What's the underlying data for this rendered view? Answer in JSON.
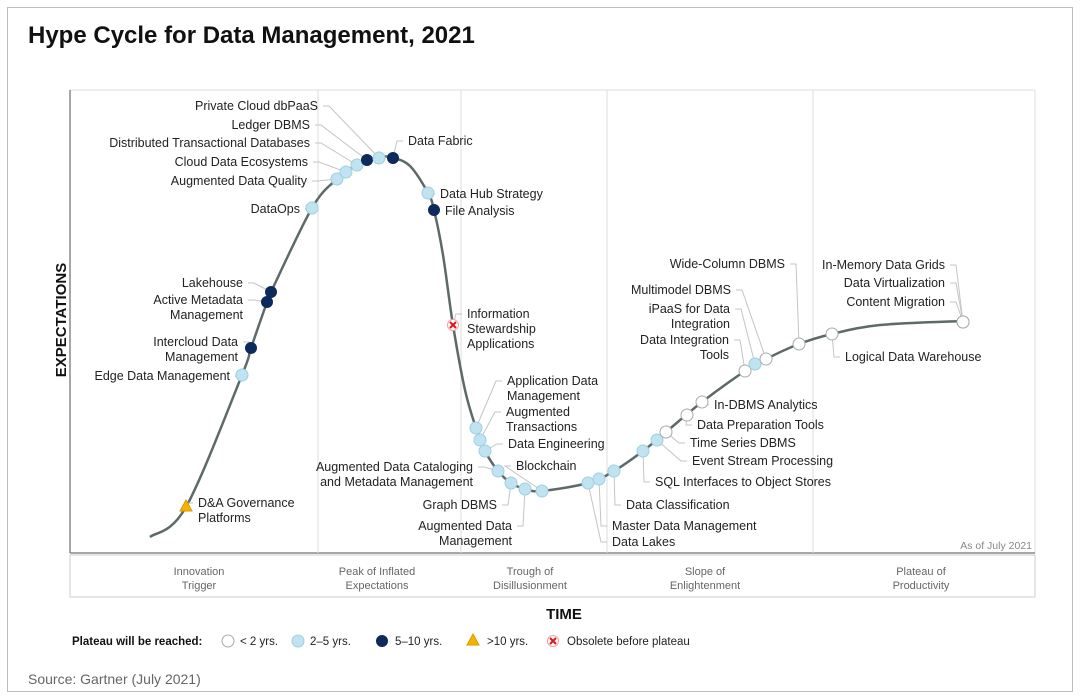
{
  "chart_data": {
    "type": "hype-cycle",
    "title": "Hype Cycle for Data Management, 2021",
    "xlabel": "TIME",
    "ylabel": "EXPECTATIONS",
    "as_of": "As of July 2021",
    "phases": [
      [
        "Innovation",
        "Trigger"
      ],
      [
        "Peak of Inflated",
        "Expectations"
      ],
      [
        "Trough of",
        "Disillusionment"
      ],
      [
        "Slope of",
        "Enlightenment"
      ],
      [
        "Plateau of",
        "Productivity"
      ]
    ],
    "legend": {
      "title": "Plateau will be reached:",
      "items": [
        {
          "key": "lt2",
          "label": "< 2 yrs."
        },
        {
          "key": "2to5",
          "label": "2–5 yrs."
        },
        {
          "key": "5to10",
          "label": "5–10 yrs."
        },
        {
          "key": "gt10",
          "label": ">10 yrs."
        },
        {
          "key": "obsolete",
          "label": "Obsolete before plateau"
        }
      ]
    },
    "colors": {
      "lt2": "#ffffff",
      "2to5": "#bfe3f1",
      "5to10": "#0d2a5c",
      "gt10": "#f5b301",
      "obsolete": "#e3131b",
      "curve": "#5e6a69"
    },
    "points": [
      {
        "name": [
          "D&A Governance",
          "Platforms"
        ],
        "plateau": "gt10",
        "phase": "Innovation Trigger"
      },
      {
        "name": [
          "Edge Data Management"
        ],
        "plateau": "2to5",
        "phase": "Innovation Trigger"
      },
      {
        "name": [
          "Intercloud Data",
          "Management"
        ],
        "plateau": "5to10",
        "phase": "Innovation Trigger"
      },
      {
        "name": [
          "Active Metadata",
          "Management"
        ],
        "plateau": "5to10",
        "phase": "Innovation Trigger"
      },
      {
        "name": [
          "Lakehouse"
        ],
        "plateau": "5to10",
        "phase": "Innovation Trigger"
      },
      {
        "name": [
          "DataOps"
        ],
        "plateau": "2to5",
        "phase": "Innovation Trigger"
      },
      {
        "name": [
          "Augmented Data Quality"
        ],
        "plateau": "2to5",
        "phase": "Peak of Inflated Expectations"
      },
      {
        "name": [
          "Cloud Data Ecosystems"
        ],
        "plateau": "2to5",
        "phase": "Peak of Inflated Expectations"
      },
      {
        "name": [
          "Distributed Transactional Databases"
        ],
        "plateau": "2to5",
        "phase": "Peak of Inflated Expectations"
      },
      {
        "name": [
          "Ledger DBMS"
        ],
        "plateau": "5to10",
        "phase": "Peak of Inflated Expectations"
      },
      {
        "name": [
          "Private Cloud dbPaaS"
        ],
        "plateau": "2to5",
        "phase": "Peak of Inflated Expectations"
      },
      {
        "name": [
          "Data Fabric"
        ],
        "plateau": "5to10",
        "phase": "Peak of Inflated Expectations"
      },
      {
        "name": [
          "Data Hub Strategy"
        ],
        "plateau": "2to5",
        "phase": "Peak of Inflated Expectations"
      },
      {
        "name": [
          "File Analysis"
        ],
        "plateau": "5to10",
        "phase": "Peak of Inflated Expectations"
      },
      {
        "name": [
          "Information",
          "Stewardship",
          "Applications"
        ],
        "plateau": "obsolete",
        "phase": "Trough of Disillusionment"
      },
      {
        "name": [
          "Application Data",
          "Management"
        ],
        "plateau": "2to5",
        "phase": "Trough of Disillusionment"
      },
      {
        "name": [
          "Augmented",
          "Transactions"
        ],
        "plateau": "2to5",
        "phase": "Trough of Disillusionment"
      },
      {
        "name": [
          "Data Engineering"
        ],
        "plateau": "2to5",
        "phase": "Trough of Disillusionment"
      },
      {
        "name": [
          "Augmented Data Cataloging",
          "and Metadata Management"
        ],
        "plateau": "2to5",
        "phase": "Trough of Disillusionment"
      },
      {
        "name": [
          "Graph DBMS"
        ],
        "plateau": "2to5",
        "phase": "Trough of Disillusionment"
      },
      {
        "name": [
          "Augmented Data",
          "Management"
        ],
        "plateau": "2to5",
        "phase": "Trough of Disillusionment"
      },
      {
        "name": [
          "Blockchain"
        ],
        "plateau": "2to5",
        "phase": "Trough of Disillusionment"
      },
      {
        "name": [
          "Data Lakes"
        ],
        "plateau": "2to5",
        "phase": "Trough of Disillusionment"
      },
      {
        "name": [
          "Master Data Management"
        ],
        "plateau": "2to5",
        "phase": "Trough of Disillusionment"
      },
      {
        "name": [
          "Data Classification"
        ],
        "plateau": "2to5",
        "phase": "Slope of Enlightenment"
      },
      {
        "name": [
          "SQL Interfaces to Object Stores"
        ],
        "plateau": "2to5",
        "phase": "Slope of Enlightenment"
      },
      {
        "name": [
          "Event Stream Processing"
        ],
        "plateau": "2to5",
        "phase": "Slope of Enlightenment"
      },
      {
        "name": [
          "Time Series DBMS"
        ],
        "plateau": "lt2",
        "phase": "Slope of Enlightenment"
      },
      {
        "name": [
          "Data Preparation Tools"
        ],
        "plateau": "lt2",
        "phase": "Slope of Enlightenment"
      },
      {
        "name": [
          "In-DBMS Analytics"
        ],
        "plateau": "lt2",
        "phase": "Slope of Enlightenment"
      },
      {
        "name": [
          "Data Integration",
          "Tools"
        ],
        "plateau": "lt2",
        "phase": "Slope of Enlightenment"
      },
      {
        "name": [
          "iPaaS for Data",
          "Integration"
        ],
        "plateau": "2to5",
        "phase": "Slope of Enlightenment"
      },
      {
        "name": [
          "Multimodel DBMS"
        ],
        "plateau": "lt2",
        "phase": "Slope of Enlightenment"
      },
      {
        "name": [
          "Wide-Column DBMS"
        ],
        "plateau": "lt2",
        "phase": "Slope of Enlightenment"
      },
      {
        "name": [
          "In-Memory Data Grids"
        ],
        "plateau": "lt2",
        "phase": "Plateau of Productivity"
      },
      {
        "name": [
          "Data Virtualization"
        ],
        "plateau": "lt2",
        "phase": "Plateau of Productivity"
      },
      {
        "name": [
          "Content Migration"
        ],
        "plateau": "lt2",
        "phase": "Plateau of Productivity"
      },
      {
        "name": [
          "Logical Data Warehouse"
        ],
        "plateau": "lt2",
        "phase": "Plateau of Productivity"
      }
    ]
  },
  "source": "Source: Gartner (July 2021)"
}
